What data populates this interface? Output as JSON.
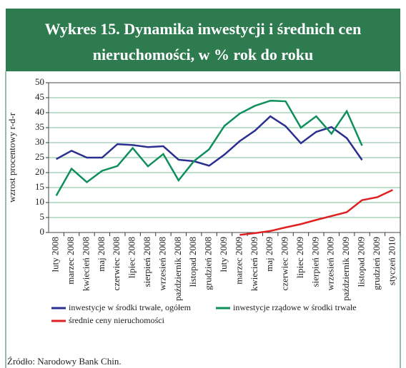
{
  "title_lines": [
    "Wykres 15. Dynamika inwestycji i średnich cen",
    "nieruchomości, w % rok do roku"
  ],
  "source": "Źródło: Narodowy Bank Chin.",
  "chart_data": {
    "type": "line",
    "ylabel": "wzrost procentowy r-d-r",
    "categories": [
      "luty 2008",
      "marzec 2008",
      "kwiecień 2008",
      "maj 2008",
      "czerwiec 2008",
      "lipiec 2008",
      "sierpień 2008",
      "wrzesień 2008",
      "październik 2008",
      "listopad 2008",
      "grudzień 2008",
      "luty 2009",
      "marzec 2009",
      "kwiecień 2009",
      "maj 2009",
      "czerwiec 2009",
      "lipiec 2009",
      "sierpień 2009",
      "wrzesień 2009",
      "październik 2009",
      "listopad 2009",
      "grudzień 2009",
      "styczeń 2010"
    ],
    "series": [
      {
        "name": "inwestycje w środki trwałe, ogółem",
        "color": "#2b2f8f",
        "values": [
          24.5,
          27.3,
          25,
          25,
          29.5,
          29.2,
          28.5,
          28.8,
          24.3,
          23.8,
          22.3,
          26,
          30.5,
          34,
          38.8,
          35.5,
          29.8,
          33.6,
          35.2,
          31.5,
          24.2,
          null,
          null
        ]
      },
      {
        "name": "inwestycje rządowe w środki trwałe",
        "color": "#0f8f5a",
        "values": [
          12.3,
          21.3,
          16.8,
          20.6,
          22.2,
          28.2,
          22.1,
          26.2,
          17.4,
          23.8,
          27.8,
          35.6,
          39.7,
          42.3,
          44,
          43.8,
          35,
          38.8,
          33,
          40.5,
          29,
          null,
          null
        ]
      },
      {
        "name": "średnie ceny nieruchomości",
        "color": "#e02020",
        "values": [
          null,
          null,
          null,
          null,
          null,
          null,
          null,
          null,
          null,
          null,
          null,
          null,
          -0.8,
          -0.2,
          0.5,
          1.7,
          2.8,
          4.2,
          5.5,
          6.8,
          10.8,
          11.8,
          14.2
        ]
      }
    ],
    "ylim": [
      0,
      50
    ],
    "yticks": [
      0,
      5,
      10,
      15,
      20,
      25,
      30,
      35,
      40,
      45,
      50
    ],
    "grid": true
  }
}
